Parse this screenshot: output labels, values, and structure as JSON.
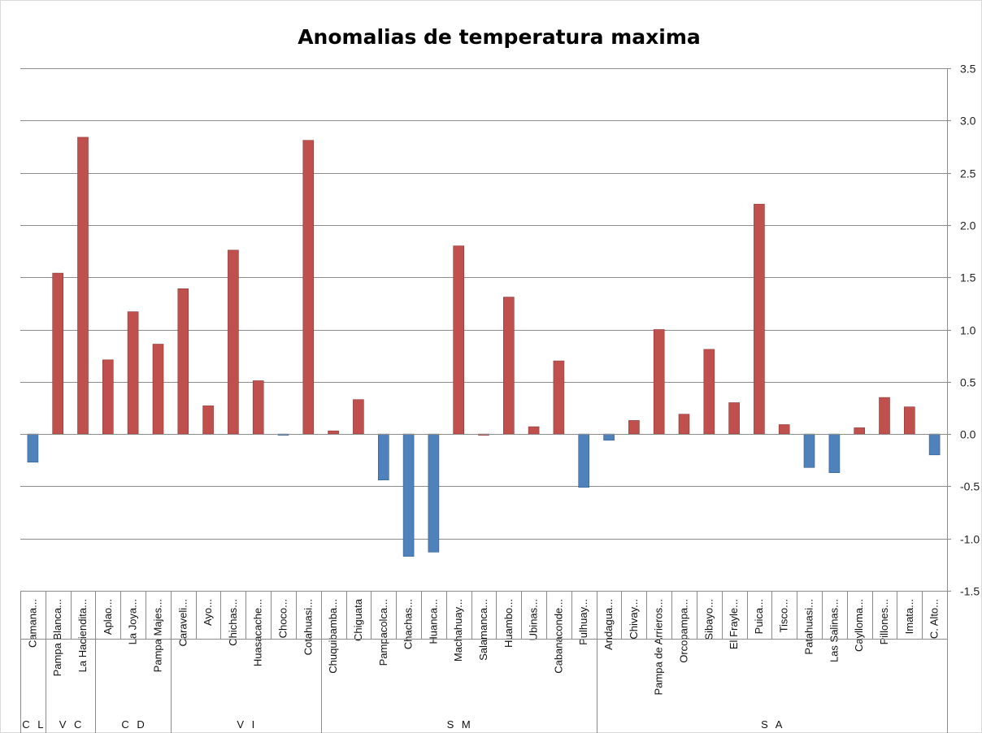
{
  "chart_data": {
    "type": "bar",
    "title": "Anomalias de temperatura maxima",
    "xlabel": "",
    "ylabel": "",
    "ylim": [
      -1.5,
      3.5
    ],
    "yticks": [
      "3.5",
      "3.0",
      "2.5",
      "2.0",
      "1.5",
      "1.0",
      "0.5",
      "0.0",
      "-0.5",
      "-1.0",
      "-1.5"
    ],
    "ytick_values": [
      3.5,
      3.0,
      2.5,
      2.0,
      1.5,
      1.0,
      0.5,
      0.0,
      -0.5,
      -1.0,
      -1.5
    ],
    "grid": true,
    "legend": "none",
    "colors": {
      "positive": "#c0504d",
      "negative": "#4f81bd",
      "positive_edge": "#8c3836",
      "negative_edge": "#385d8a"
    },
    "categories": [
      "Camana...",
      "Pampa Blanca...",
      "La Haciendita...",
      "Aplao...",
      "La Joya...",
      "Pampa Majes...",
      "Caraveli...",
      "Ayo...",
      "Chichas...",
      "Huasacache...",
      "Choco...",
      "Cotahuasi...",
      "Chuquibamba...",
      "Chiguata",
      "Pampacolca...",
      "Chachas...",
      "Huanca...",
      "Machahuay...",
      "Salamanca...",
      "Huambo...",
      "Ubinas...",
      "Cabanaconde...",
      "Pulhuay...",
      "Andagua...",
      "Chivay...",
      "Pampa de Arrieros...",
      "Orcopampa...",
      "Sibayo...",
      "El Frayle...",
      "Puica...",
      "Tisco...",
      "Patahuasi...",
      "Las Salinas...",
      "Caylloma...",
      "Pillones...",
      "Imata...",
      "C. Alto..."
    ],
    "values": [
      -0.27,
      1.54,
      2.84,
      0.71,
      1.17,
      0.86,
      1.39,
      0.27,
      1.76,
      0.51,
      -0.01,
      2.81,
      0.03,
      0.33,
      -0.44,
      -1.17,
      -1.13,
      1.8,
      0.0,
      1.31,
      0.07,
      0.7,
      -0.51,
      -0.06,
      0.13,
      1.0,
      0.19,
      0.81,
      0.3,
      2.2,
      0.09,
      -0.32,
      -0.37,
      0.06,
      0.35,
      0.26,
      -0.2
    ],
    "groups": [
      {
        "label": "C L",
        "count": 1
      },
      {
        "label": "V C",
        "count": 2
      },
      {
        "label": "C D",
        "count": 3
      },
      {
        "label": "V I",
        "count": 6
      },
      {
        "label": "S M",
        "count": 11
      },
      {
        "label": "S A",
        "count": 14
      }
    ]
  }
}
